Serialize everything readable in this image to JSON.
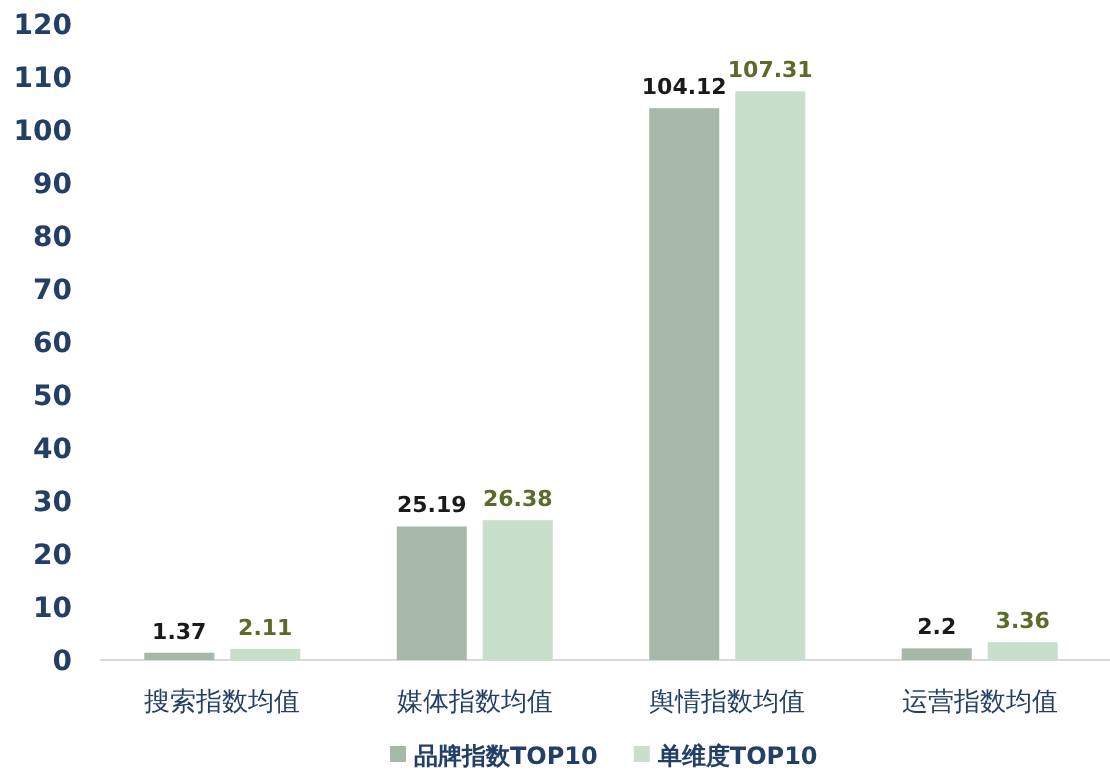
{
  "chart_data": {
    "type": "bar",
    "categories": [
      "搜索指数均值",
      "媒体指数均值",
      "舆情指数均值",
      "运营指数均值"
    ],
    "series": [
      {
        "name": "品牌指数TOP10",
        "color": "#a6b8a8",
        "values": [
          1.37,
          25.19,
          104.12,
          2.2
        ]
      },
      {
        "name": "单维度TOP10",
        "color": "#c8e0cb",
        "values": [
          2.11,
          26.38,
          107.31,
          3.36
        ]
      }
    ],
    "ylim": [
      0,
      120
    ],
    "yticks": [
      0,
      10,
      20,
      30,
      40,
      50,
      60,
      70,
      80,
      90,
      100,
      110,
      120
    ],
    "data_labels": true,
    "legend": "bottom",
    "grid": false
  }
}
